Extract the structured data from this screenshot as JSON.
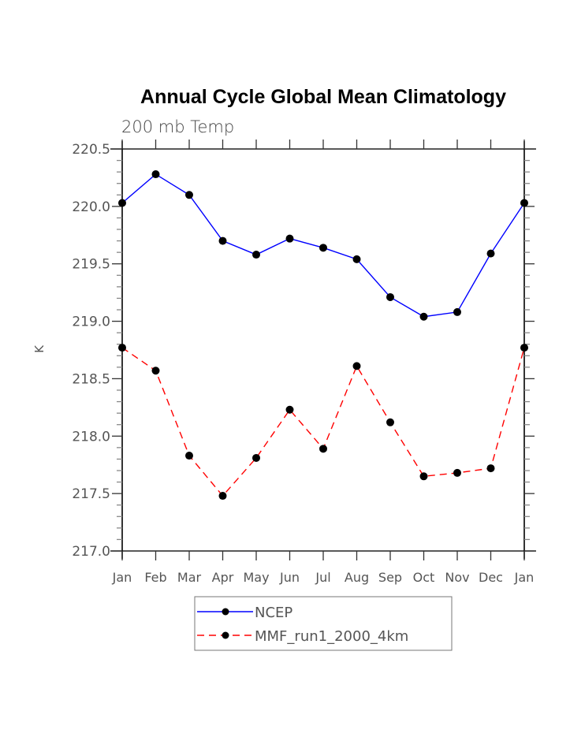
{
  "chart_data": {
    "type": "line",
    "title": "Annual Cycle Global Mean Climatology",
    "subtitle": "200 mb Temp",
    "xlabel": "",
    "ylabel": "K",
    "categories": [
      "Jan",
      "Feb",
      "Mar",
      "Apr",
      "May",
      "Jun",
      "Jul",
      "Aug",
      "Sep",
      "Oct",
      "Nov",
      "Dec",
      "Jan"
    ],
    "ylim": [
      217.0,
      220.5
    ],
    "yticks": [
      217.0,
      217.5,
      218.0,
      218.5,
      219.0,
      219.5,
      220.0,
      220.5
    ],
    "ytick_labels": [
      "217.0",
      "217.5",
      "218.0",
      "218.5",
      "219.0",
      "219.5",
      "220.0",
      "220.5"
    ],
    "y_minor_step": 0.1,
    "grid": false,
    "legend_position": "bottom-center",
    "series": [
      {
        "name": "NCEP",
        "color": "#0000ff",
        "line_style": "solid",
        "marker": "filled-circle",
        "values": [
          220.03,
          220.28,
          220.1,
          219.7,
          219.58,
          219.72,
          219.64,
          219.54,
          219.21,
          219.04,
          219.08,
          219.59,
          220.03
        ]
      },
      {
        "name": "MMF_run1_2000_4km",
        "color": "#ff0000",
        "line_style": "dashed",
        "marker": "filled-circle",
        "values": [
          218.77,
          218.57,
          217.83,
          217.48,
          217.81,
          218.23,
          217.89,
          218.61,
          218.12,
          217.65,
          217.68,
          217.72,
          218.77
        ]
      }
    ]
  }
}
